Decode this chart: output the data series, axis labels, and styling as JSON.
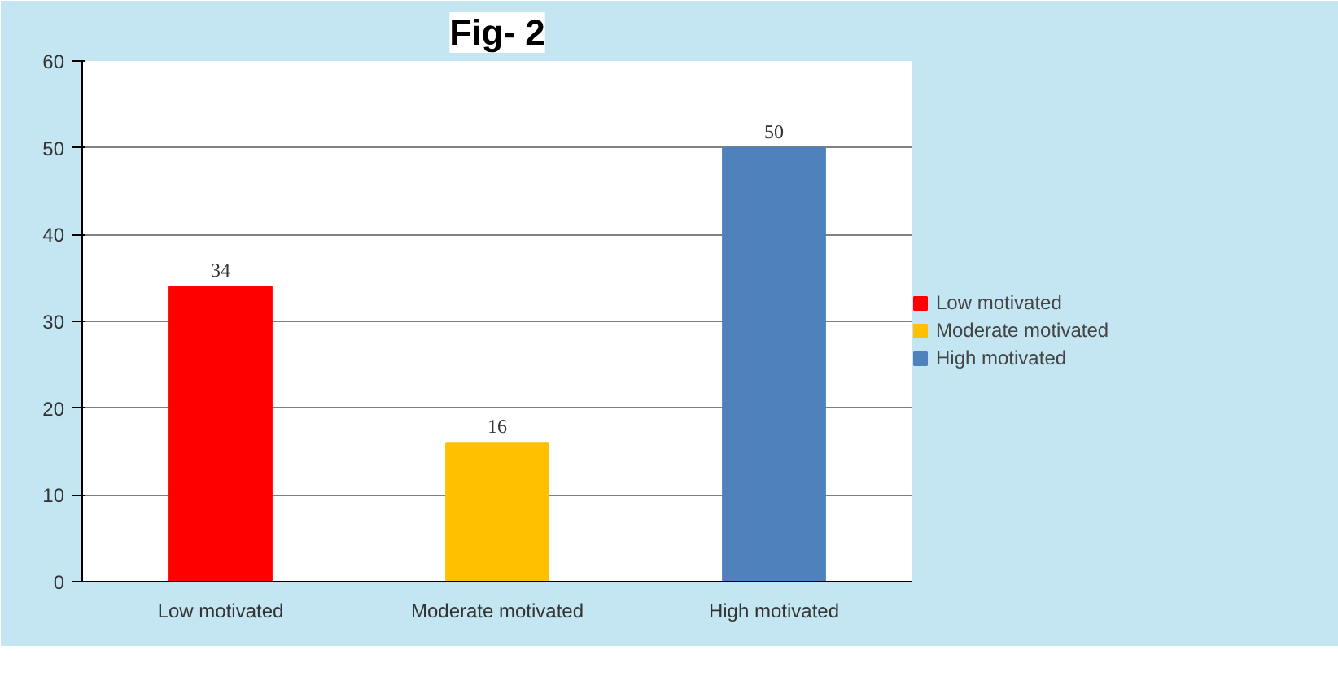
{
  "chart_data": {
    "type": "bar",
    "title": "Fig- 2",
    "categories": [
      "Low motivated",
      "Moderate motivated",
      "High motivated"
    ],
    "stacked": true,
    "series": [
      {
        "name": "Low motivated",
        "color": "#ff0000",
        "values": [
          34,
          null,
          null
        ]
      },
      {
        "name": "Moderate motivated",
        "color": "#ffc000",
        "values": [
          null,
          16,
          null
        ]
      },
      {
        "name": "High motivated",
        "color": "#4f81bd",
        "values": [
          null,
          null,
          50
        ]
      }
    ],
    "ylim": [
      0,
      60
    ],
    "yticks": [
      0,
      10,
      20,
      30,
      40,
      50,
      60
    ],
    "grid": "y",
    "legend": "right",
    "data_labels": true
  }
}
